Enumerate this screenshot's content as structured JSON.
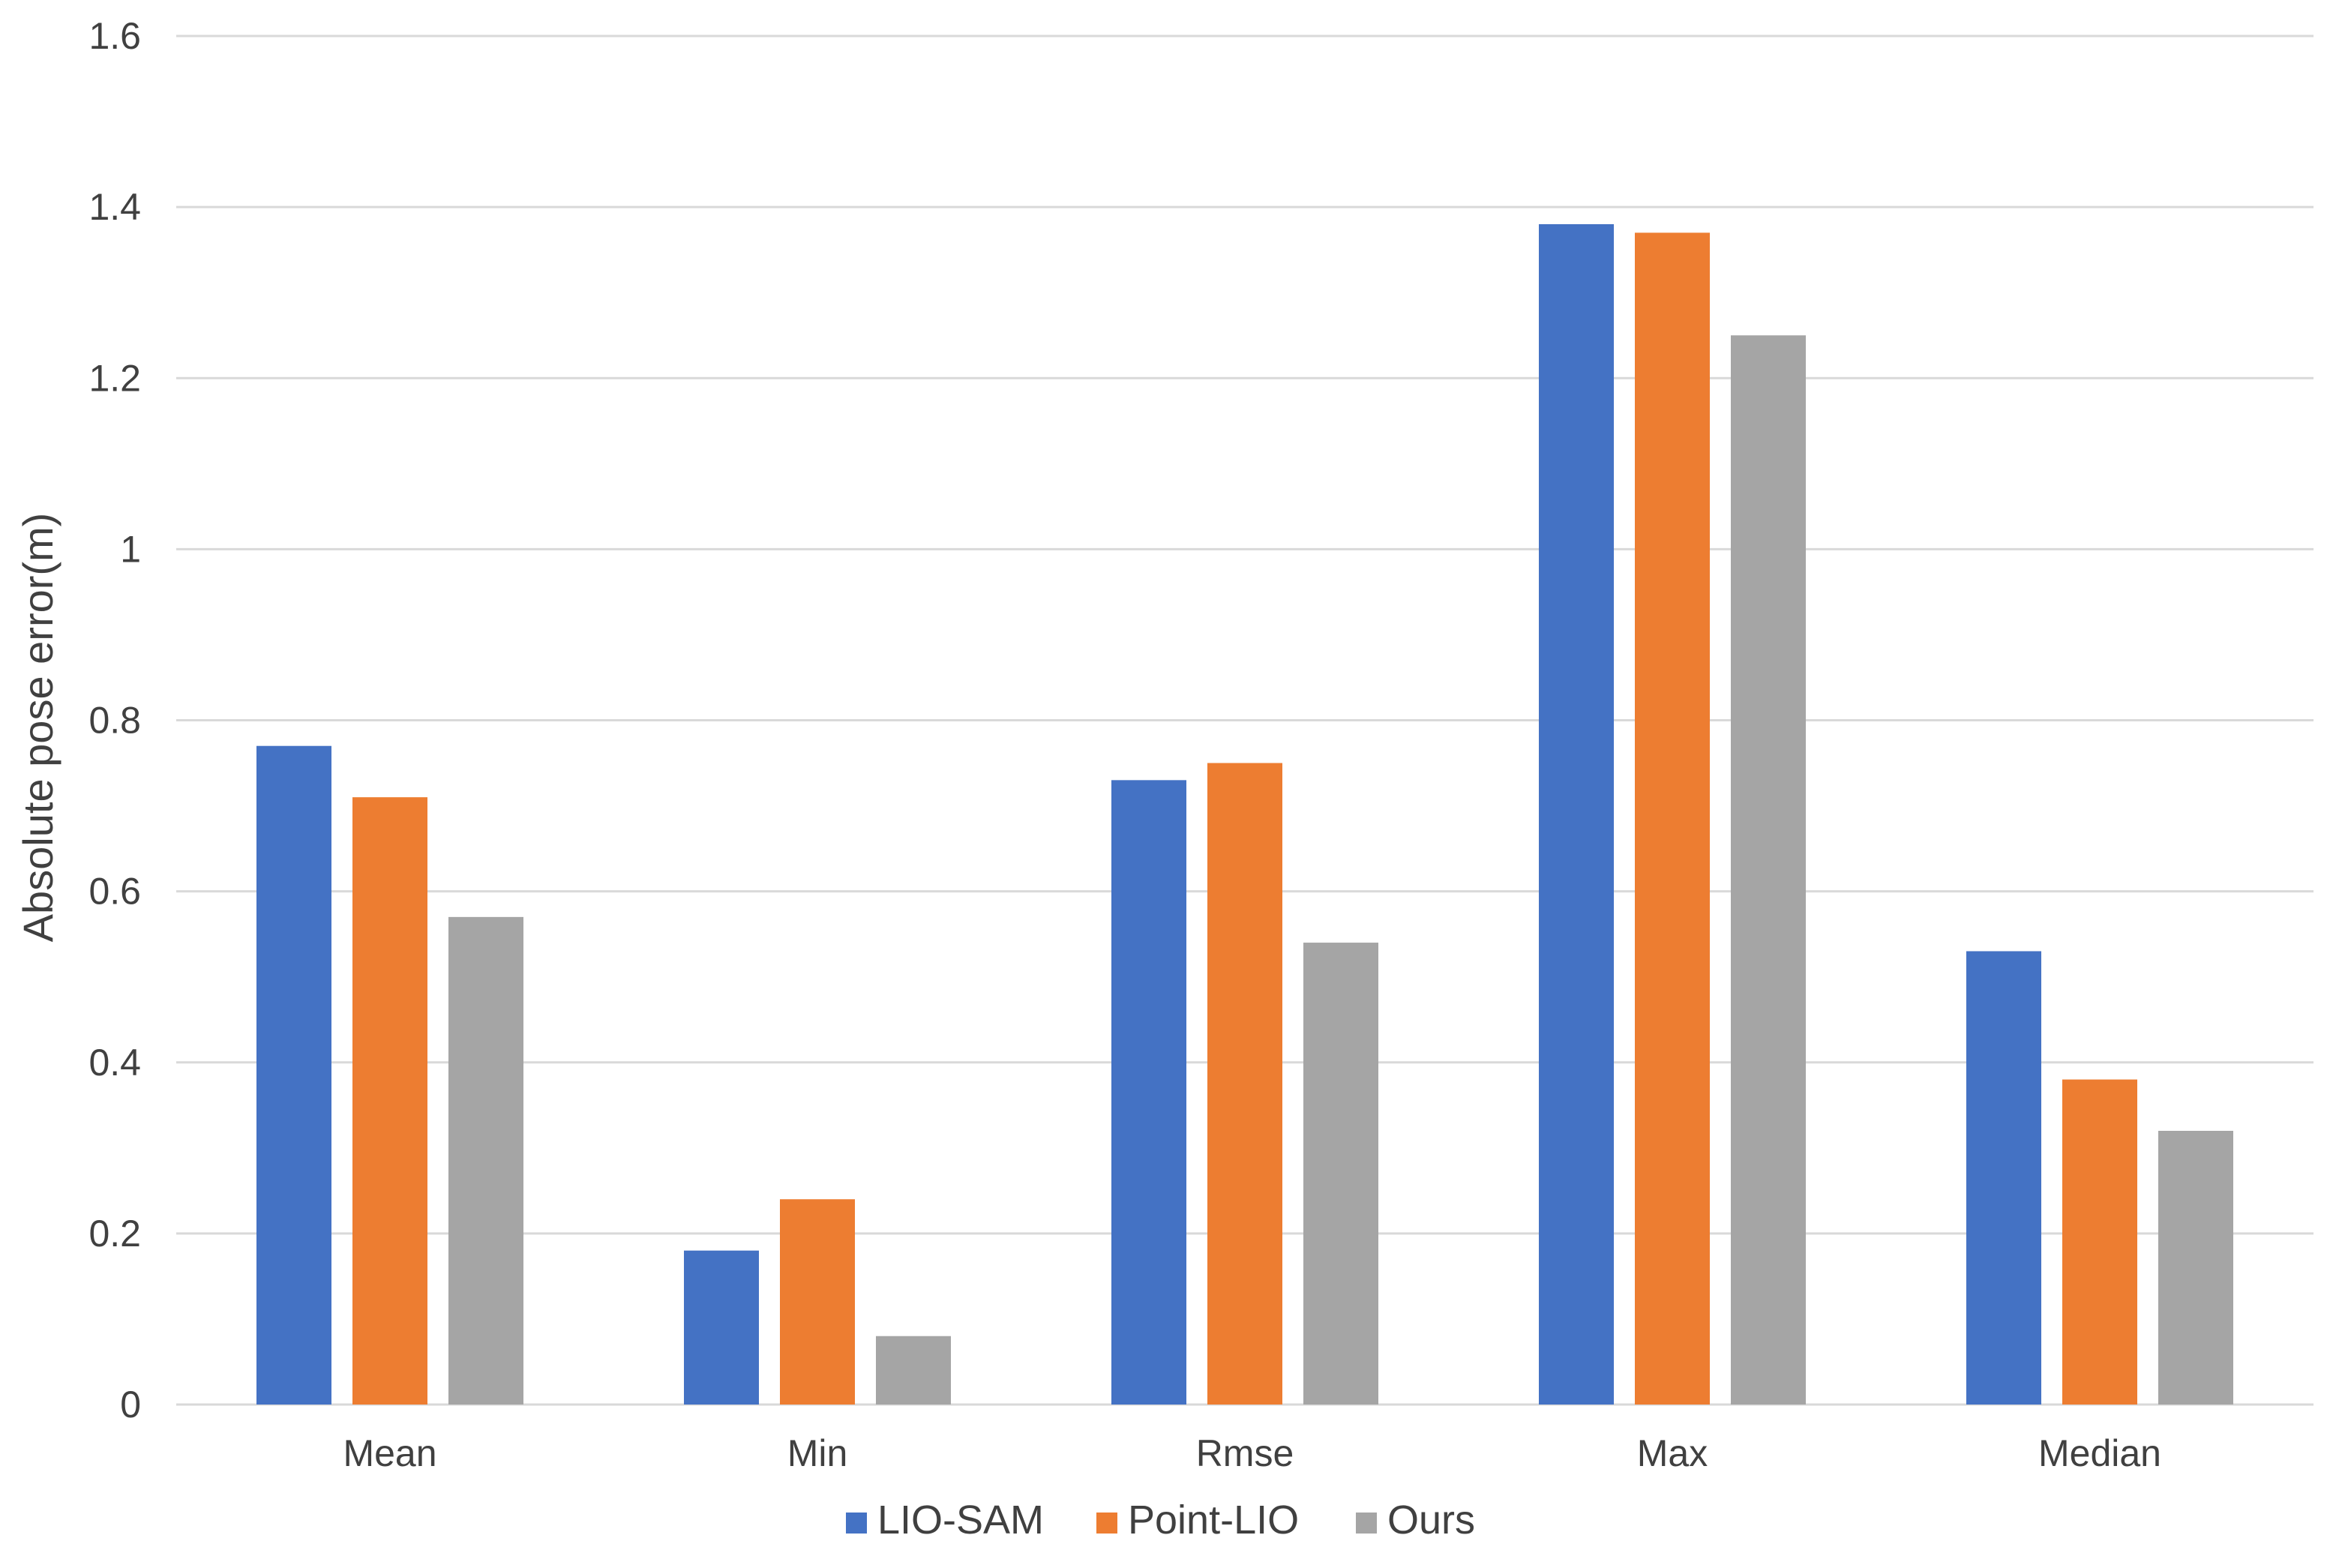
{
  "chart_data": {
    "type": "bar",
    "title": "",
    "xlabel": "",
    "ylabel": "Absolute pose error(m)",
    "ylim": [
      0,
      1.6
    ],
    "yticks": [
      "0",
      "0.2",
      "0.4",
      "0.6",
      "0.8",
      "1",
      "1.2",
      "1.4",
      "1.6"
    ],
    "categories": [
      "Mean",
      "Min",
      "Rmse",
      "Max",
      "Median"
    ],
    "grid": true,
    "legend_position": "bottom",
    "series": [
      {
        "name": "LIO-SAM",
        "color": "#4472c4",
        "values": [
          0.77,
          0.18,
          0.73,
          1.38,
          0.53
        ]
      },
      {
        "name": "Point-LIO",
        "color": "#ed7d31",
        "values": [
          0.71,
          0.24,
          0.75,
          1.37,
          0.38
        ]
      },
      {
        "name": "Ours",
        "color": "#a5a5a5",
        "values": [
          0.57,
          0.08,
          0.54,
          1.25,
          0.32
        ]
      }
    ]
  }
}
